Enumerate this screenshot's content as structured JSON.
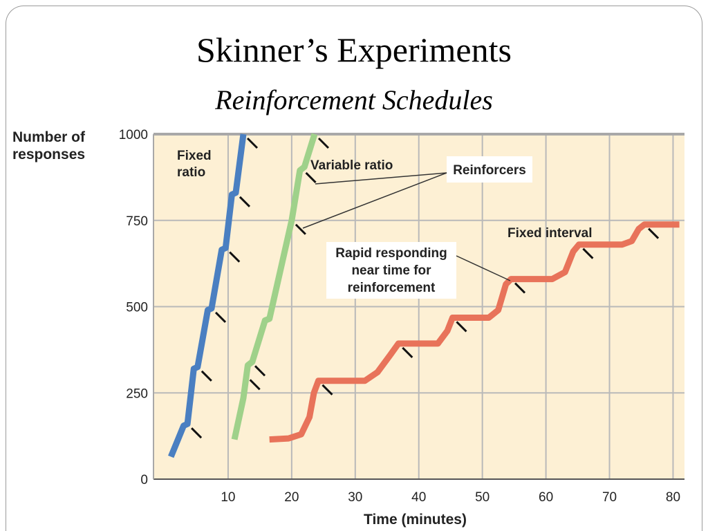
{
  "slide": {
    "title": "Skinner’s Experiments",
    "subtitle": "Reinforcement Schedules"
  },
  "chart_data": {
    "type": "line",
    "ylabel_line1": "Number of",
    "ylabel_line2": "responses",
    "xlabel": "Time (minutes)",
    "xlim": [
      0,
      80
    ],
    "ylim": [
      0,
      1000
    ],
    "x_ticks": [
      10,
      20,
      30,
      40,
      50,
      60,
      70,
      80
    ],
    "y_ticks": [
      0,
      250,
      500,
      750,
      1000
    ],
    "grid": true,
    "colors": {
      "fixed_ratio": "#4a7fc1",
      "variable_ratio": "#9fd18a",
      "fixed_interval": "#e8735a",
      "background": "#fdf0d4",
      "grid": "#b9b9b9"
    },
    "series": [
      {
        "key": "fixed_ratio",
        "name": "Fixed\nratio",
        "points": [
          [
            1,
            65
          ],
          [
            3,
            155
          ],
          [
            3.6,
            160
          ],
          [
            4.6,
            320
          ],
          [
            5.2,
            325
          ],
          [
            6.8,
            490
          ],
          [
            7.4,
            495
          ],
          [
            9.0,
            665
          ],
          [
            9.6,
            670
          ],
          [
            10.6,
            825
          ],
          [
            11.2,
            830
          ],
          [
            12.4,
            1000
          ]
        ],
        "reinforcers": [
          [
            3.6,
            160
          ],
          [
            5.2,
            325
          ],
          [
            7.4,
            495
          ],
          [
            9.6,
            670
          ],
          [
            11.2,
            830
          ],
          [
            12.4,
            1000
          ]
        ]
      },
      {
        "key": "variable_ratio",
        "name": "Variable ratio",
        "points": [
          [
            11,
            115
          ],
          [
            12.4,
            235
          ],
          [
            13.1,
            330
          ],
          [
            13.8,
            340
          ],
          [
            15.8,
            460
          ],
          [
            16.5,
            465
          ],
          [
            20.0,
            750
          ],
          [
            21.3,
            895
          ],
          [
            22.0,
            905
          ],
          [
            23.6,
            1000
          ]
        ],
        "reinforcers": [
          [
            12.8,
            300
          ],
          [
            13.6,
            340
          ],
          [
            20.0,
            750
          ],
          [
            21.6,
            900
          ],
          [
            23.6,
            1000
          ]
        ]
      },
      {
        "key": "fixed_interval",
        "name": "Fixed interval",
        "points": [
          [
            16.5,
            115
          ],
          [
            19.5,
            118
          ],
          [
            21.5,
            130
          ],
          [
            22.8,
            180
          ],
          [
            23.5,
            250
          ],
          [
            24.2,
            285
          ],
          [
            31.5,
            285
          ],
          [
            33.5,
            310
          ],
          [
            35.5,
            360
          ],
          [
            36.8,
            393
          ],
          [
            43,
            393
          ],
          [
            44.5,
            430
          ],
          [
            45.3,
            468
          ],
          [
            51,
            468
          ],
          [
            52.5,
            490
          ],
          [
            53.7,
            565
          ],
          [
            54.5,
            580
          ],
          [
            61,
            580
          ],
          [
            63,
            600
          ],
          [
            64.3,
            660
          ],
          [
            65.2,
            680
          ],
          [
            72,
            680
          ],
          [
            73.5,
            690
          ],
          [
            74.6,
            725
          ],
          [
            75.5,
            738
          ],
          [
            81,
            738
          ]
        ],
        "reinforcers": [
          [
            24.2,
            285
          ],
          [
            36.8,
            393
          ],
          [
            45.3,
            468
          ],
          [
            54.5,
            580
          ],
          [
            65.2,
            680
          ],
          [
            75.5,
            738
          ]
        ]
      }
    ],
    "annotations": {
      "reinforcers": "Reinforcers",
      "rapid_line1": "Rapid responding",
      "rapid_line2": "near time for",
      "rapid_line3": "reinforcement"
    }
  }
}
